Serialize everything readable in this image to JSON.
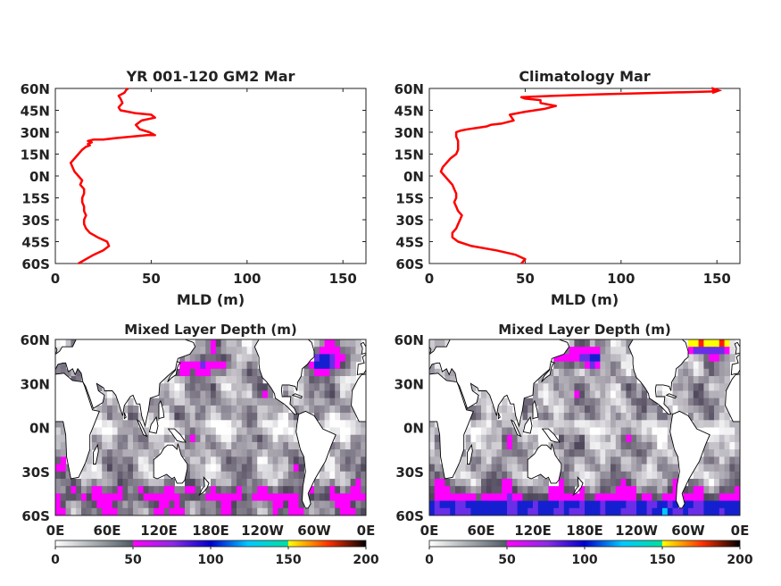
{
  "chart_data": [
    {
      "type": "line",
      "title": "YR 001-120 GM2 Mar",
      "xlabel": "MLD (m)",
      "ylabel": "",
      "xlim": [
        0,
        162
      ],
      "ylim": [
        -60,
        60
      ],
      "xticks": [
        "0",
        "50",
        "100",
        "150"
      ],
      "yticks": [
        "60N",
        "45N",
        "30N",
        "15N",
        "0N",
        "15S",
        "30S",
        "45S",
        "60S"
      ],
      "grid": false,
      "color": "#ff0000",
      "series": [
        {
          "x": [
            12,
            16,
            20,
            25,
            28,
            27,
            22,
            18,
            16,
            15,
            15,
            16,
            15,
            15,
            14,
            14,
            15,
            15,
            13,
            14,
            12,
            10,
            9,
            8,
            10,
            12,
            14,
            16,
            18,
            17,
            19,
            17,
            20,
            25,
            32,
            40,
            48,
            52,
            49,
            44,
            42,
            45,
            52,
            50,
            42,
            38,
            34,
            33,
            35,
            34,
            33,
            36,
            37,
            38
          ],
          "y": [
            -60,
            -57,
            -54,
            -51,
            -48,
            -45,
            -42,
            -39,
            -36,
            -33,
            -30,
            -27,
            -24,
            -21,
            -18,
            -15,
            -12,
            -9,
            -6,
            -3,
            0,
            3,
            6,
            9,
            12,
            15,
            18,
            20,
            21,
            22,
            23,
            24,
            25,
            25,
            26,
            27,
            28,
            28,
            30,
            32,
            35,
            38,
            40,
            42,
            43,
            44,
            45,
            47,
            50,
            53,
            55,
            57,
            59,
            60
          ]
        }
      ]
    },
    {
      "type": "line",
      "title": "Climatology Mar",
      "xlabel": "MLD (m)",
      "ylabel": "",
      "xlim": [
        0,
        162
      ],
      "ylim": [
        -60,
        60
      ],
      "xticks": [
        "0",
        "50",
        "100",
        "150"
      ],
      "yticks": [
        "60N",
        "45N",
        "30N",
        "15N",
        "0N",
        "15S",
        "30S",
        "45S",
        "60S"
      ],
      "grid": false,
      "color": "#ff0000",
      "series": [
        {
          "x": [
            48,
            50,
            45,
            35,
            22,
            15,
            12,
            12,
            14,
            15,
            16,
            17,
            15,
            14,
            13,
            14,
            14,
            13,
            12,
            10,
            8,
            6,
            7,
            9,
            11,
            14,
            15,
            15,
            15,
            14,
            14,
            16,
            20,
            25,
            30,
            32,
            38,
            44,
            42,
            50,
            60,
            66,
            58,
            58,
            50,
            48,
            65,
            90,
            120,
            150
          ],
          "y": [
            -60,
            -57,
            -54,
            -51,
            -48,
            -45,
            -42,
            -39,
            -36,
            -33,
            -30,
            -27,
            -24,
            -21,
            -18,
            -15,
            -12,
            -9,
            -6,
            -3,
            0,
            3,
            6,
            9,
            12,
            15,
            18,
            21,
            24,
            27,
            30,
            31,
            32,
            33,
            34,
            35,
            36,
            38,
            42,
            44,
            46,
            48,
            50,
            52,
            53,
            54,
            55,
            56,
            57,
            58
          ]
        }
      ]
    },
    {
      "type": "heatmap",
      "title": "Mixed Layer Depth (m)",
      "xticks": [
        "0E",
        "60E",
        "120E",
        "180E",
        "120W",
        "60W",
        "0E"
      ],
      "yticks": [
        "60N",
        "30N",
        "0N",
        "30S",
        "60S"
      ],
      "colorbar_ticks": [
        "0",
        "50",
        "100",
        "150",
        "200"
      ],
      "colorbar_range": [
        0,
        200
      ],
      "colormap": [
        "#ffffff",
        "#55606a",
        "#ff00ff",
        "#2222cc",
        "#00ffff",
        "#ffff00",
        "#ff0000",
        "#000000"
      ]
    },
    {
      "type": "heatmap",
      "title": "Mixed Layer Depth (m)",
      "xticks": [
        "0E",
        "60E",
        "120E",
        "180E",
        "120W",
        "60W",
        "0E"
      ],
      "yticks": [
        "60N",
        "30N",
        "0N",
        "30S",
        "60S"
      ],
      "colorbar_ticks": [
        "0",
        "50",
        "100",
        "150",
        "200"
      ],
      "colorbar_range": [
        0,
        200
      ],
      "colormap": [
        "#ffffff",
        "#55606a",
        "#ff00ff",
        "#2222cc",
        "#00ffff",
        "#ffff00",
        "#ff0000",
        "#000000"
      ]
    }
  ]
}
